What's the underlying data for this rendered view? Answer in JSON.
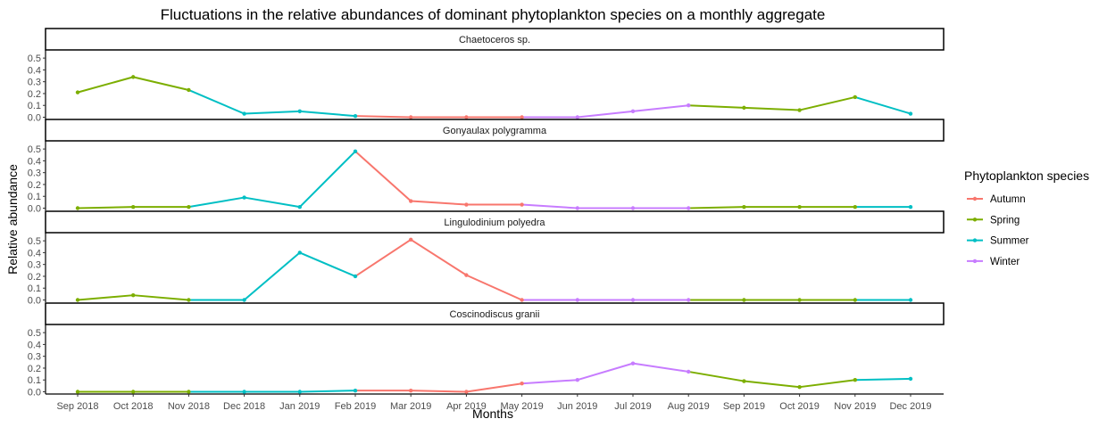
{
  "chart_data": {
    "type": "line",
    "title": "Fluctuations in the relative abundances of dominant phytoplankton species on a monthly aggregate",
    "xlabel": "Months",
    "ylabel": "Relative abundance",
    "ylim": [
      0,
      0.55
    ],
    "yticks": [
      "0.0",
      "0.1",
      "0.2",
      "0.3",
      "0.4",
      "0.5"
    ],
    "categories": [
      "Sep 2018",
      "Oct 2018",
      "Nov 2018",
      "Dec 2018",
      "Jan 2019",
      "Feb 2019",
      "Mar 2019",
      "Apr 2019",
      "May 2019",
      "Jun 2019",
      "Jul 2019",
      "Aug 2019",
      "Sep 2019",
      "Oct 2019",
      "Nov 2019",
      "Dec 2019"
    ],
    "legend": {
      "title": "Phytoplankton species",
      "position": "right",
      "entries": [
        {
          "name": "Autumn",
          "color": "#F8766D"
        },
        {
          "name": "Spring",
          "color": "#7CAE00"
        },
        {
          "name": "Summer",
          "color": "#00BFC4"
        },
        {
          "name": "Winter",
          "color": "#C77CFF"
        }
      ]
    },
    "panels": [
      {
        "label": "Chaetoceros sp.",
        "values": [
          0.21,
          0.34,
          0.23,
          0.03,
          0.05,
          0.01,
          0.0,
          0.0,
          0.0,
          0.0,
          0.05,
          0.1,
          0.08,
          0.06,
          0.17,
          0.03
        ],
        "seasons": [
          "Spring",
          "Spring",
          "Spring",
          "Summer",
          "Summer",
          "Summer",
          "Autumn",
          "Autumn",
          "Autumn",
          "Winter",
          "Winter",
          "Winter",
          "Spring",
          "Spring",
          "Spring",
          "Summer"
        ]
      },
      {
        "label": "Gonyaulax polygramma",
        "values": [
          0.0,
          0.01,
          0.01,
          0.09,
          0.01,
          0.48,
          0.06,
          0.03,
          0.03,
          0.0,
          0.0,
          0.0,
          0.01,
          0.01,
          0.01,
          0.01
        ],
        "seasons": [
          "Spring",
          "Spring",
          "Spring",
          "Summer",
          "Summer",
          "Summer",
          "Autumn",
          "Autumn",
          "Autumn",
          "Winter",
          "Winter",
          "Winter",
          "Spring",
          "Spring",
          "Spring",
          "Summer"
        ]
      },
      {
        "label": "Lingulodinium polyedra",
        "values": [
          0.0,
          0.04,
          0.0,
          0.0,
          0.4,
          0.2,
          0.51,
          0.21,
          0.0,
          0.0,
          0.0,
          0.0,
          0.0,
          0.0,
          0.0,
          0.0
        ],
        "seasons": [
          "Spring",
          "Spring",
          "Spring",
          "Summer",
          "Summer",
          "Summer",
          "Autumn",
          "Autumn",
          "Autumn",
          "Winter",
          "Winter",
          "Winter",
          "Spring",
          "Spring",
          "Spring",
          "Summer"
        ]
      },
      {
        "label": "Coscinodiscus granii",
        "values": [
          0.0,
          0.0,
          0.0,
          0.0,
          0.0,
          0.01,
          0.01,
          0.0,
          0.07,
          0.1,
          0.24,
          0.17,
          0.09,
          0.04,
          0.1,
          0.11
        ],
        "seasons": [
          "Spring",
          "Spring",
          "Spring",
          "Summer",
          "Summer",
          "Summer",
          "Autumn",
          "Autumn",
          "Autumn",
          "Winter",
          "Winter",
          "Winter",
          "Spring",
          "Spring",
          "Spring",
          "Summer"
        ]
      }
    ]
  }
}
